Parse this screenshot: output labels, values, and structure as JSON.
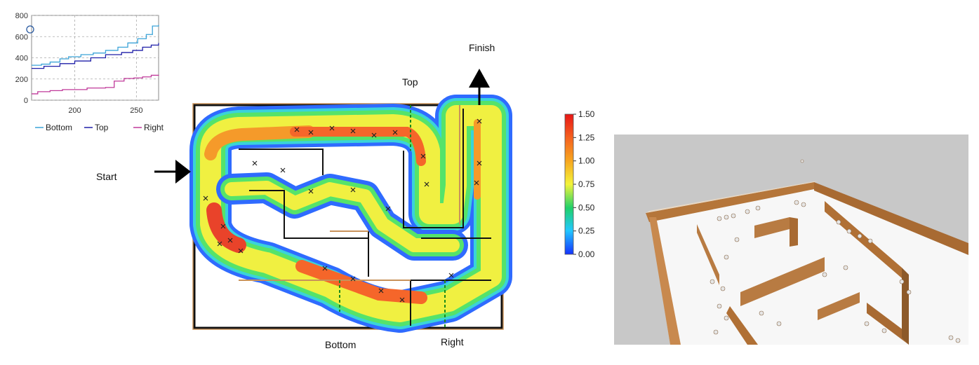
{
  "chart_data": {
    "type": "line",
    "x_ticks": [
      "200",
      "250"
    ],
    "y_ticks": [
      "0",
      "200",
      "400",
      "600",
      "800"
    ],
    "xlim": [
      165,
      268
    ],
    "ylim": [
      0,
      800
    ],
    "grid": true,
    "legend_position": "bottom",
    "series": [
      {
        "name": "Bottom",
        "color": "#3ba3d8",
        "points": [
          [
            165,
            330
          ],
          [
            173,
            340
          ],
          [
            180,
            360
          ],
          [
            188,
            390
          ],
          [
            195,
            410
          ],
          [
            205,
            430
          ],
          [
            215,
            445
          ],
          [
            225,
            470
          ],
          [
            235,
            500
          ],
          [
            243,
            540
          ],
          [
            251,
            580
          ],
          [
            258,
            620
          ],
          [
            263,
            700
          ],
          [
            268,
            710
          ]
        ]
      },
      {
        "name": "Top",
        "color": "#1f1fa8",
        "points": [
          [
            165,
            300
          ],
          [
            175,
            320
          ],
          [
            188,
            345
          ],
          [
            200,
            370
          ],
          [
            213,
            400
          ],
          [
            225,
            430
          ],
          [
            238,
            450
          ],
          [
            247,
            470
          ],
          [
            255,
            500
          ],
          [
            262,
            520
          ],
          [
            268,
            540
          ]
        ]
      },
      {
        "name": "Right",
        "color": "#c03a9a",
        "points": [
          [
            165,
            60
          ],
          [
            170,
            80
          ],
          [
            180,
            90
          ],
          [
            190,
            100
          ],
          [
            210,
            115
          ],
          [
            225,
            120
          ],
          [
            232,
            180
          ],
          [
            240,
            205
          ],
          [
            248,
            210
          ],
          [
            255,
            220
          ],
          [
            262,
            235
          ],
          [
            268,
            240
          ]
        ]
      }
    ]
  },
  "map_labels": {
    "start": "Start",
    "finish": "Finish",
    "top": "Top",
    "bottom": "Bottom",
    "right": "Right"
  },
  "colorbar": {
    "ticks": [
      "1.50",
      "1.25",
      "1.00",
      "0.75",
      "0.50",
      "0.25",
      "0.00"
    ]
  }
}
